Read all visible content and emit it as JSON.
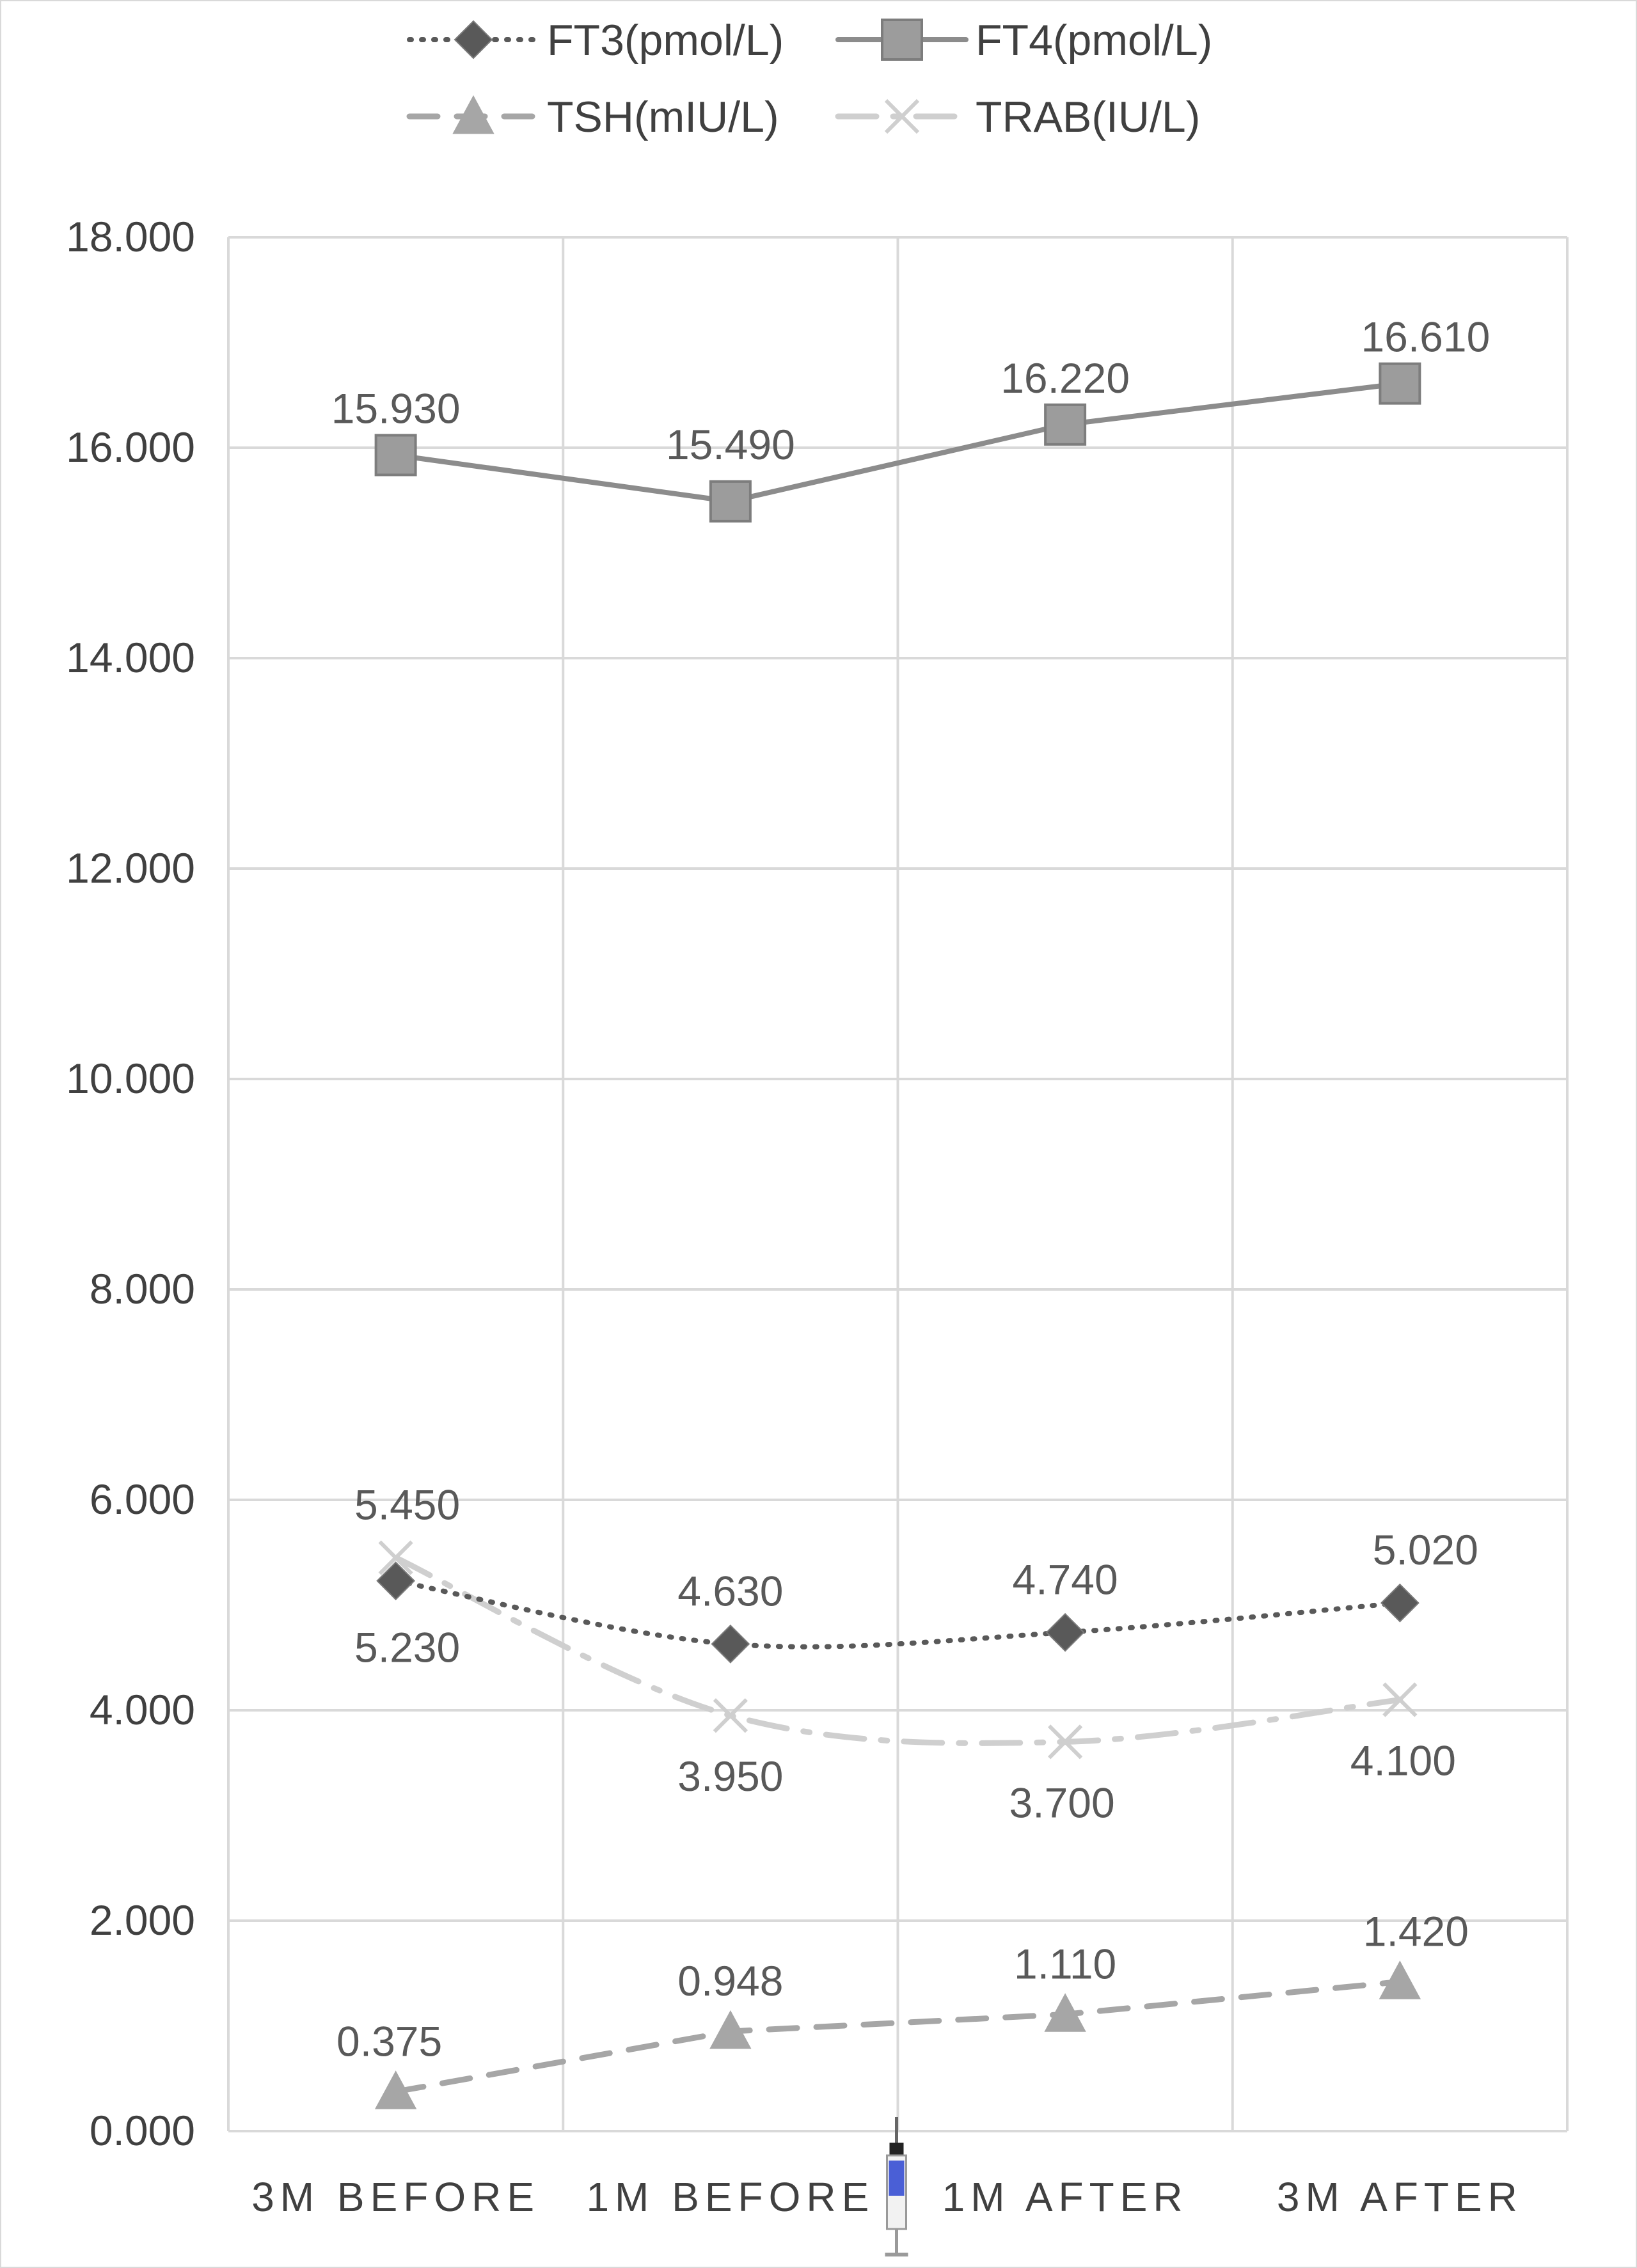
{
  "chart_data": {
    "type": "line",
    "categories": [
      "3M BEFORE",
      "1M BEFORE",
      "1M AFTER",
      "3M AFTER"
    ],
    "ylim": [
      0,
      18
    ],
    "yticks": [
      "0.000",
      "2.000",
      "4.000",
      "6.000",
      "8.000",
      "10.000",
      "12.000",
      "14.000",
      "16.000",
      "18.000"
    ],
    "grid": true,
    "legend_position": "top",
    "series": [
      {
        "name": "FT3(pmol/L)",
        "values": [
          5.23,
          4.63,
          4.74,
          5.02
        ],
        "labels": [
          "5.230",
          "4.630",
          "4.740",
          "5.020"
        ],
        "color": "#595959",
        "line": "dotted",
        "marker": "diamond"
      },
      {
        "name": "FT4(pmol/L)",
        "values": [
          15.93,
          15.49,
          16.22,
          16.61
        ],
        "labels": [
          "15.930",
          "15.490",
          "16.220",
          "16.610"
        ],
        "color": "#8c8c8c",
        "line": "solid",
        "marker": "square"
      },
      {
        "name": "TSH(mIU/L)",
        "values": [
          0.375,
          0.948,
          1.11,
          1.42
        ],
        "labels": [
          "0.375",
          "0.948",
          "1.110",
          "1.420"
        ],
        "color": "#a6a6a6",
        "line": "dashed",
        "marker": "triangle"
      },
      {
        "name": "TRAB(IU/L)",
        "values": [
          5.45,
          3.95,
          3.7,
          4.1
        ],
        "labels": [
          "5.450",
          "3.950",
          "3.700",
          "4.100"
        ],
        "color": "#cfcfcf",
        "line": "dash-dot",
        "marker": "x"
      }
    ],
    "annotations": [
      {
        "type": "syringe-icon",
        "between": [
          "1M BEFORE",
          "1M AFTER"
        ]
      }
    ]
  }
}
